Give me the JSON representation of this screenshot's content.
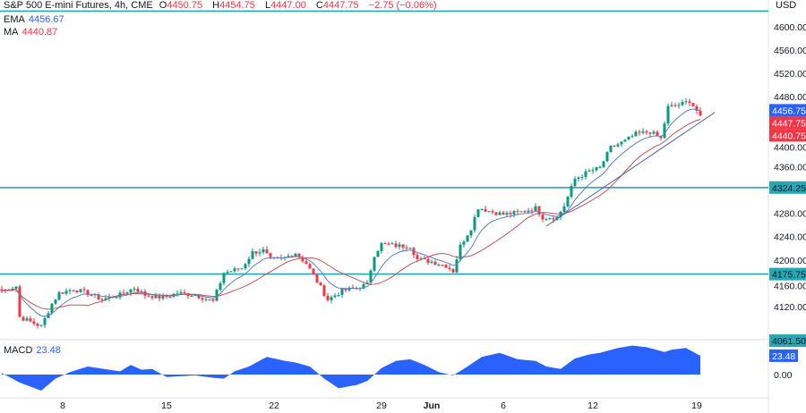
{
  "header": {
    "symbol": "S&P 500 E-mini Futures, 4h, CME",
    "open_label": "O",
    "open": "4450.75",
    "high_label": "H",
    "high": "4454.75",
    "low_label": "L",
    "low": "4447.00",
    "close_label": "C",
    "close": "4447.75",
    "change": "−2.75 (−0.06%)"
  },
  "indicators": {
    "ema_label": "EMA",
    "ema_value": "4456.67",
    "ma_label": "MA",
    "ma_value": "4440.87",
    "macd_label": "MACD",
    "macd_value": "23.48"
  },
  "colors": {
    "up": "#089981",
    "down": "#f23645",
    "ema": "#5b7fc7",
    "ma": "#c2545c",
    "level": "#26a7b5",
    "macd": "#2962ff",
    "trend": "#4a5fa8"
  },
  "chart_data": {
    "type": "candlestick",
    "currency": "USD",
    "ylim": [
      4055,
      4627
    ],
    "y_ticks": [
      "4600.00",
      "4560.00",
      "4520.00",
      "4480.00",
      "4400.00",
      "4360.00",
      "4280.00",
      "4240.00",
      "4200.00",
      "4160.00",
      "4120.00"
    ],
    "x_ticks": [
      {
        "label": "8",
        "bar": 17
      },
      {
        "label": "15",
        "bar": 46
      },
      {
        "label": "22",
        "bar": 76
      },
      {
        "label": "29",
        "bar": 106
      },
      {
        "label": "Jun",
        "bar": 120
      },
      {
        "label": "6",
        "bar": 140
      },
      {
        "label": "12",
        "bar": 165
      },
      {
        "label": "19",
        "bar": 194
      }
    ],
    "close_path": [
      [
        0,
        4147
      ],
      [
        4,
        4155
      ],
      [
        5,
        4102
      ],
      [
        8,
        4094
      ],
      [
        11,
        4086
      ],
      [
        14,
        4125
      ],
      [
        16,
        4143
      ],
      [
        20,
        4150
      ],
      [
        24,
        4143
      ],
      [
        28,
        4132
      ],
      [
        33,
        4140
      ],
      [
        37,
        4152
      ],
      [
        40,
        4140
      ],
      [
        45,
        4135
      ],
      [
        49,
        4143
      ],
      [
        54,
        4140
      ],
      [
        59,
        4129
      ],
      [
        62,
        4178
      ],
      [
        67,
        4186
      ],
      [
        70,
        4213
      ],
      [
        73,
        4216
      ],
      [
        75,
        4201
      ],
      [
        78,
        4201
      ],
      [
        82,
        4212
      ],
      [
        85,
        4194
      ],
      [
        88,
        4163
      ],
      [
        91,
        4132
      ],
      [
        95,
        4147
      ],
      [
        99,
        4152
      ],
      [
        102,
        4158
      ],
      [
        104,
        4209
      ],
      [
        106,
        4227
      ],
      [
        111,
        4224
      ],
      [
        114,
        4224
      ],
      [
        116,
        4201
      ],
      [
        120,
        4197
      ],
      [
        124,
        4190
      ],
      [
        126,
        4181
      ],
      [
        128,
        4224
      ],
      [
        131,
        4255
      ],
      [
        133,
        4290
      ],
      [
        136,
        4284
      ],
      [
        140,
        4278
      ],
      [
        144,
        4281
      ],
      [
        149,
        4289
      ],
      [
        151,
        4273
      ],
      [
        155,
        4273
      ],
      [
        157,
        4293
      ],
      [
        160,
        4339
      ],
      [
        164,
        4352
      ],
      [
        167,
        4358
      ],
      [
        170,
        4393
      ],
      [
        174,
        4404
      ],
      [
        177,
        4416
      ],
      [
        181,
        4420
      ],
      [
        184,
        4408
      ],
      [
        186,
        4462
      ],
      [
        190,
        4468
      ],
      [
        192,
        4473
      ],
      [
        195,
        4447.75
      ]
    ],
    "ema_period": 9,
    "ma_period": 20,
    "horizontal_levels": [
      {
        "price": 4627
      },
      {
        "price": 4324.25,
        "label": "4324.25"
      },
      {
        "price": 4175.75,
        "label": "4175.75"
      }
    ],
    "price_tags": [
      {
        "label": "4456.75",
        "price": 4456.75,
        "color": "#2962ff"
      },
      {
        "label": "4447.75",
        "price": 4447.75,
        "color": "#f23645"
      },
      {
        "label": "4440.75",
        "price": 4440.75,
        "color": "#f23645"
      },
      {
        "label": "4061.50",
        "price": 4061.5,
        "color": "#26a7b5"
      }
    ],
    "trendline": [
      [
        152,
        4258
      ],
      [
        199,
        4453
      ]
    ],
    "macd": {
      "zero_label": "0.00",
      "ylim": [
        -22,
        38
      ],
      "path": [
        [
          0,
          2
        ],
        [
          5,
          -10
        ],
        [
          11,
          -20
        ],
        [
          15,
          -5
        ],
        [
          19,
          3
        ],
        [
          24,
          10
        ],
        [
          30,
          6
        ],
        [
          33,
          4
        ],
        [
          36,
          12
        ],
        [
          39,
          6
        ],
        [
          42,
          7
        ],
        [
          46,
          -3
        ],
        [
          50,
          -2
        ],
        [
          54,
          -1
        ],
        [
          59,
          -4
        ],
        [
          62,
          -5
        ],
        [
          65,
          4
        ],
        [
          69,
          10
        ],
        [
          74,
          22
        ],
        [
          79,
          17
        ],
        [
          82,
          15
        ],
        [
          86,
          10
        ],
        [
          90,
          -5
        ],
        [
          94,
          -17
        ],
        [
          99,
          -13
        ],
        [
          102,
          -8
        ],
        [
          106,
          8
        ],
        [
          110,
          17
        ],
        [
          114,
          19
        ],
        [
          118,
          12
        ],
        [
          122,
          3
        ],
        [
          126,
          -1
        ],
        [
          130,
          10
        ],
        [
          134,
          22
        ],
        [
          139,
          27
        ],
        [
          144,
          19
        ],
        [
          149,
          17
        ],
        [
          152,
          10
        ],
        [
          156,
          7
        ],
        [
          160,
          20
        ],
        [
          164,
          25
        ],
        [
          167,
          27
        ],
        [
          172,
          33
        ],
        [
          176,
          36
        ],
        [
          180,
          34
        ],
        [
          185,
          28
        ],
        [
          187,
          31
        ],
        [
          191,
          33
        ],
        [
          195,
          23.48
        ]
      ]
    }
  }
}
